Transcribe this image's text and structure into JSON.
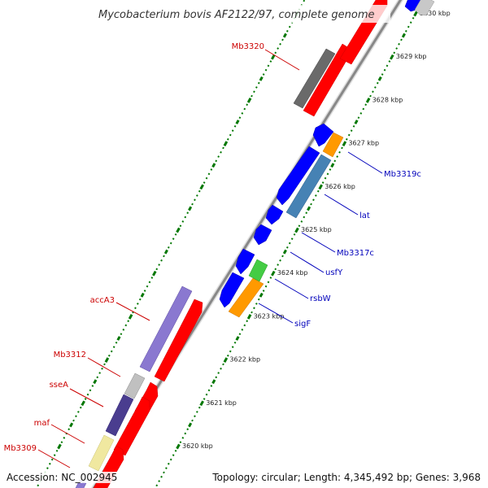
{
  "title": "Mycobacterium bovis AF2122/97, complete genome",
  "footer": {
    "accession": "Accession: NC_002945",
    "topology": "Topology: circular; Length: 4,345,492 bp; Genes: 3,968"
  },
  "colors": {
    "forward_label": "#cc0000",
    "reverse_label": "#0000bb",
    "backbone": "#888888",
    "tick": "#007700"
  },
  "scale_kbp": [
    {
      "label": "3620 kbp",
      "kbp": 3620
    },
    {
      "label": "3621 kbp",
      "kbp": 3621
    },
    {
      "label": "3622 kbp",
      "kbp": 3622
    },
    {
      "label": "3623 kbp",
      "kbp": 3623
    },
    {
      "label": "3624 kbp",
      "kbp": 3624
    },
    {
      "label": "3625 kbp",
      "kbp": 3625
    },
    {
      "label": "3626 kbp",
      "kbp": 3626
    },
    {
      "label": "3627 kbp",
      "kbp": 3627
    },
    {
      "label": "3628 kbp",
      "kbp": 3628
    },
    {
      "label": "3629 kbp",
      "kbp": 3629
    },
    {
      "label": "3630 kbp",
      "kbp": 3630
    }
  ],
  "forward_genes": [
    {
      "name": "Mb3309",
      "color": "#f0e8a0"
    },
    {
      "name": "maf",
      "color": "#4a3d8f"
    },
    {
      "name": "sseA",
      "color": "#c0c0c0"
    },
    {
      "name": "Mb3312",
      "color": "#8a78d0"
    },
    {
      "name": "accA3",
      "color": "#ff0000"
    },
    {
      "name": "Mb3320",
      "color": "#6a6a6a"
    }
  ],
  "reverse_genes": [
    {
      "name": "sigF",
      "color": "#ff9900"
    },
    {
      "name": "rsbW",
      "color": "#44cc44"
    },
    {
      "name": "usfY",
      "color": "#0000ff"
    },
    {
      "name": "Mb3317c",
      "color": "#0000ff"
    },
    {
      "name": "lat",
      "color": "#4682b4"
    },
    {
      "name": "Mb3319c",
      "color": "#ff9900"
    }
  ]
}
